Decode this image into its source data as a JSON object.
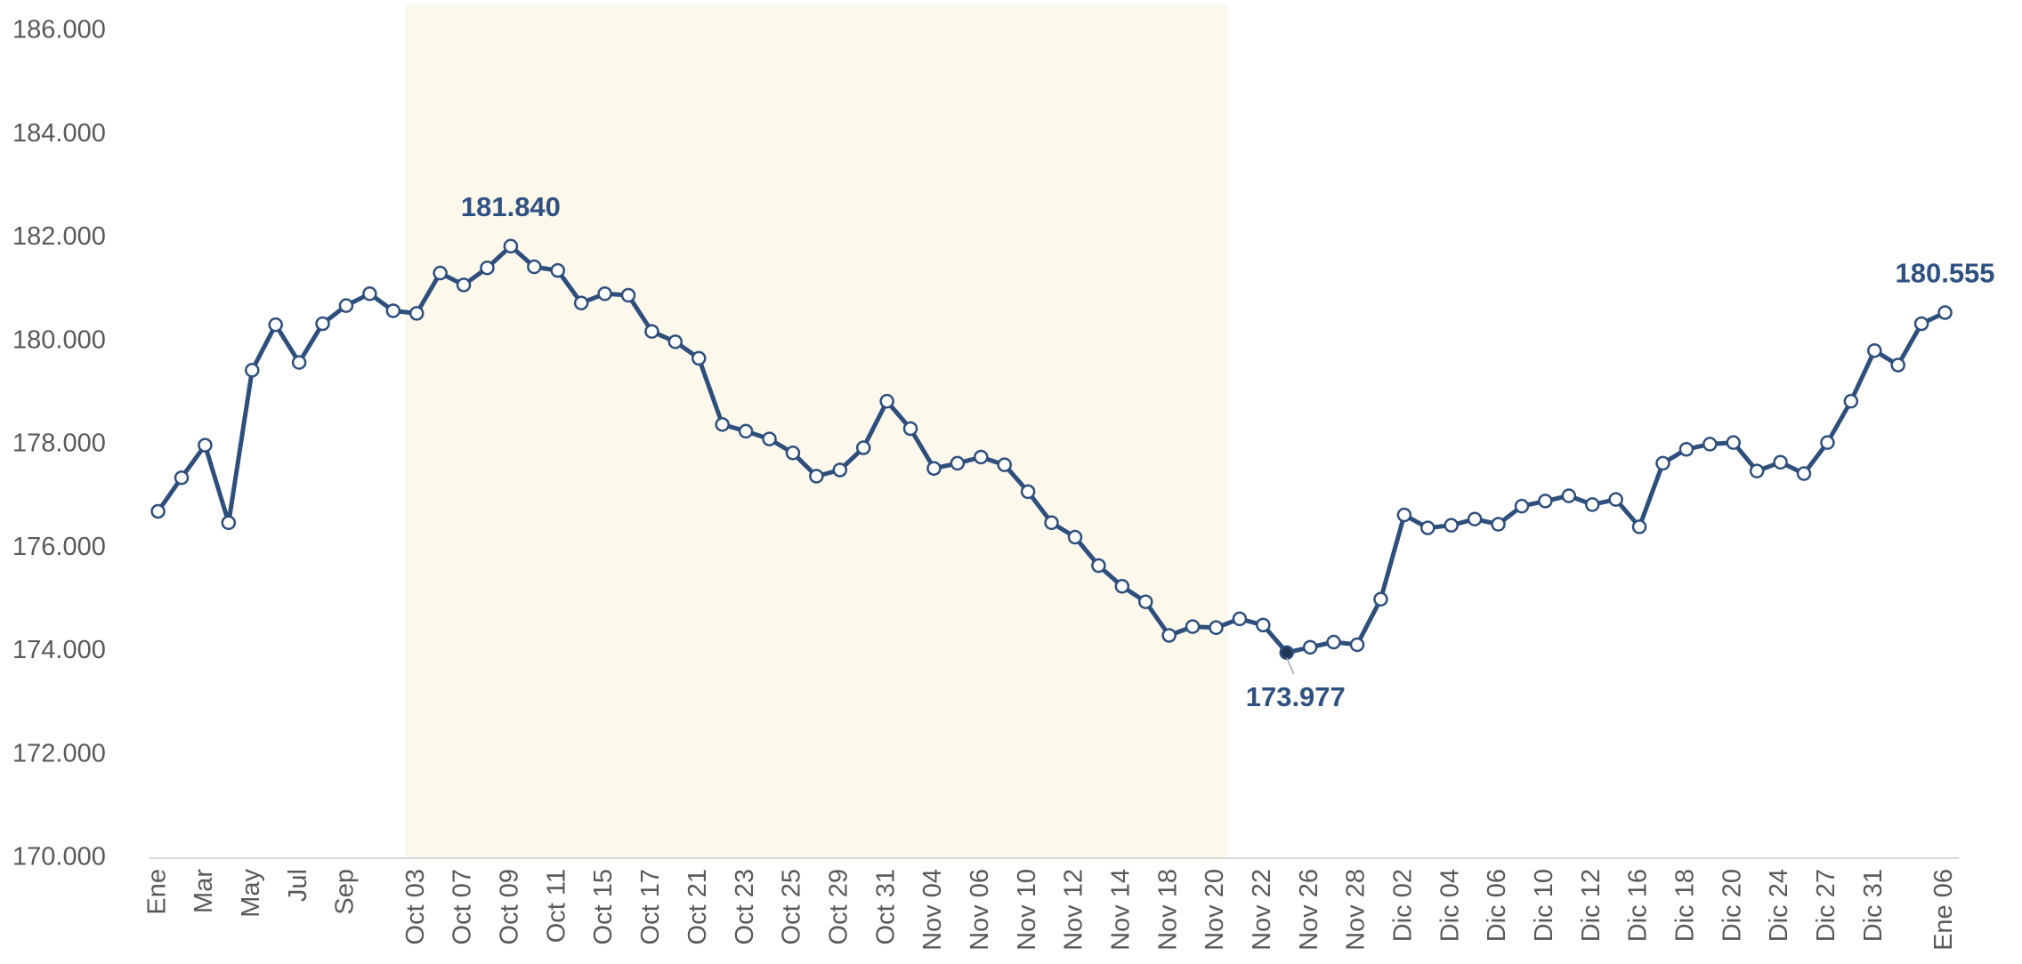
{
  "chart_data": {
    "type": "line",
    "categories": [
      "Ene",
      null,
      "Mar",
      null,
      "May",
      null,
      "Jul",
      null,
      "Sep",
      null,
      null,
      "Oct 03",
      null,
      "Oct 07",
      null,
      "Oct 09",
      null,
      "Oct 11",
      null,
      "Oct 15",
      null,
      "Oct 17",
      null,
      "Oct 21",
      null,
      "Oct 23",
      null,
      "Oct 25",
      null,
      "Oct 29",
      null,
      "Oct 31",
      null,
      "Nov 04",
      null,
      "Nov 06",
      null,
      "Nov 10",
      null,
      "Nov 12",
      null,
      "Nov 14",
      null,
      "Nov 18",
      null,
      "Nov 20",
      null,
      "Nov 22",
      null,
      "Nov 26",
      null,
      "Nov 28",
      null,
      "Dic 02",
      null,
      "Dic 04",
      null,
      "Dic 06",
      null,
      "Dic 10",
      null,
      "Dic 12",
      null,
      "Dic 16",
      null,
      "Dic 18",
      null,
      "Dic 20",
      null,
      "Dic 24",
      null,
      "Dic 27",
      null,
      "Dic 31",
      null,
      null,
      "Ene 06"
    ],
    "values": [
      176.71,
      177.36,
      177.99,
      176.49,
      179.44,
      180.32,
      179.59,
      180.34,
      180.69,
      180.92,
      180.59,
      180.54,
      181.32,
      181.09,
      181.42,
      181.84,
      181.44,
      181.37,
      180.74,
      180.92,
      180.89,
      180.19,
      179.99,
      179.67,
      178.39,
      178.26,
      178.11,
      177.84,
      177.39,
      177.51,
      177.94,
      178.84,
      178.31,
      177.54,
      177.64,
      177.76,
      177.61,
      177.09,
      176.49,
      176.21,
      175.66,
      175.26,
      174.96,
      174.31,
      174.48,
      174.46,
      174.63,
      174.51,
      173.977,
      174.08,
      174.18,
      174.13,
      175.01,
      176.64,
      176.39,
      176.44,
      176.56,
      176.46,
      176.81,
      176.91,
      177.01,
      176.84,
      176.94,
      176.41,
      177.64,
      177.91,
      178.01,
      178.04,
      177.49,
      177.66,
      177.44,
      178.04,
      178.84,
      179.82,
      179.54,
      180.34,
      180.555
    ],
    "value_labels": [
      null,
      null,
      null,
      null,
      null,
      null,
      null,
      null,
      null,
      null,
      null,
      null,
      null,
      null,
      null,
      "181.840",
      null,
      null,
      null,
      null,
      null,
      null,
      null,
      null,
      null,
      null,
      null,
      null,
      null,
      null,
      null,
      null,
      null,
      null,
      null,
      null,
      null,
      null,
      null,
      null,
      null,
      null,
      null,
      null,
      null,
      null,
      null,
      null,
      "173.977",
      null,
      null,
      null,
      null,
      null,
      null,
      null,
      null,
      null,
      null,
      null,
      null,
      null,
      null,
      null,
      null,
      null,
      null,
      null,
      null,
      null,
      null,
      null,
      null,
      null,
      null,
      null,
      "180.555"
    ],
    "color": "#2e4f7c",
    "highlight_range": [
      "Oct 03",
      "Nov 20"
    ],
    "highlight_color": "#fcf8ec",
    "ylim": [
      170,
      186
    ],
    "yticks": [
      {
        "value": 170,
        "label": "170.000"
      },
      {
        "value": 172,
        "label": "172.000"
      },
      {
        "value": 174,
        "label": "174.000"
      },
      {
        "value": 176,
        "label": "176.000"
      },
      {
        "value": 178,
        "label": "178.000"
      },
      {
        "value": 180,
        "label": "180.000"
      },
      {
        "value": 182,
        "label": "182.000"
      },
      {
        "value": 184,
        "label": "184.000"
      },
      {
        "value": 186,
        "label": "186.000"
      }
    ],
    "grid": false
  }
}
